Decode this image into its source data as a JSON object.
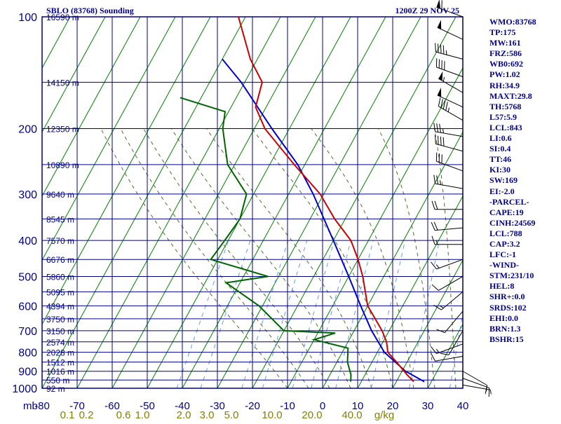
{
  "header": {
    "title": "SBLO (83768) Sounding",
    "time": "1200Z 29 NOV 25"
  },
  "colors": {
    "grid": "#00008b",
    "isotherm": "#008000",
    "temperature": "#cc0000",
    "dewpoint": "#006400",
    "parcel": "#0000cc",
    "moist": "#556b2f",
    "mixratio": "#6699ff",
    "mixlabel": "#808000",
    "text": "#00008b"
  },
  "chart_data": {
    "type": "skew-t log-p sounding",
    "pressure_unit": "mb",
    "pressure_levels": [
      100,
      200,
      300,
      400,
      500,
      600,
      700,
      800,
      900,
      1000
    ],
    "pressure_range": [
      100,
      1000
    ],
    "temperature_ticks": [
      -80,
      -70,
      -60,
      -50,
      -40,
      -30,
      -20,
      -10,
      0,
      10,
      20,
      30,
      40
    ],
    "temperature_range": [
      -80,
      40
    ],
    "height_labels": [
      {
        "p": 100,
        "label": "16590 m"
      },
      {
        "p": 150,
        "label": "14150 m"
      },
      {
        "p": 200,
        "label": "12350 m"
      },
      {
        "p": 250,
        "label": "10890 m"
      },
      {
        "p": 300,
        "label": "9640 m"
      },
      {
        "p": 350,
        "label": "8545 m"
      },
      {
        "p": 400,
        "label": "7570 m"
      },
      {
        "p": 450,
        "label": "6676 m"
      },
      {
        "p": 500,
        "label": "5860 m"
      },
      {
        "p": 550,
        "label": "5095 m"
      },
      {
        "p": 600,
        "label": "4394 m"
      },
      {
        "p": 650,
        "label": "3750 m"
      },
      {
        "p": 700,
        "label": "3150 m"
      },
      {
        "p": 750,
        "label": "2574 m"
      },
      {
        "p": 800,
        "label": "2028 m"
      },
      {
        "p": 850,
        "label": "1512 m"
      },
      {
        "p": 900,
        "label": "1016 m"
      },
      {
        "p": 950,
        "label": "550 m"
      },
      {
        "p": 1000,
        "label": "92 m"
      }
    ],
    "mixing_ratio_labels": [
      "0.1",
      "0.2",
      "0.6",
      "1.0",
      "2.0",
      "3.0",
      "5.0",
      "10.0",
      "20.0",
      "40.0",
      "g/kg"
    ],
    "mixing_ratio_values": [
      0.1,
      0.2,
      0.6,
      1.0,
      2.0,
      3.0,
      5.0,
      10.0,
      20.0,
      40.0
    ],
    "temperature_profile": [
      {
        "p": 960,
        "t": 25
      },
      {
        "p": 920,
        "t": 22
      },
      {
        "p": 850,
        "t": 17
      },
      {
        "p": 800,
        "t": 13
      },
      {
        "p": 750,
        "t": 11
      },
      {
        "p": 700,
        "t": 8
      },
      {
        "p": 600,
        "t": 0
      },
      {
        "p": 500,
        "t": -6
      },
      {
        "p": 450,
        "t": -10
      },
      {
        "p": 400,
        "t": -15
      },
      {
        "p": 350,
        "t": -23
      },
      {
        "p": 300,
        "t": -31
      },
      {
        "p": 250,
        "t": -43
      },
      {
        "p": 200,
        "t": -57
      },
      {
        "p": 175,
        "t": -63
      },
      {
        "p": 150,
        "t": -65
      },
      {
        "p": 130,
        "t": -72
      },
      {
        "p": 100,
        "t": -82
      }
    ],
    "dewpoint_profile": [
      {
        "p": 960,
        "t": 7
      },
      {
        "p": 920,
        "t": 6
      },
      {
        "p": 850,
        "t": 3
      },
      {
        "p": 780,
        "t": 1
      },
      {
        "p": 740,
        "t": -10
      },
      {
        "p": 710,
        "t": -5
      },
      {
        "p": 700,
        "t": -20
      },
      {
        "p": 600,
        "t": -31
      },
      {
        "p": 520,
        "t": -44
      },
      {
        "p": 500,
        "t": -33
      },
      {
        "p": 450,
        "t": -52
      },
      {
        "p": 400,
        "t": -51
      },
      {
        "p": 350,
        "t": -50
      },
      {
        "p": 300,
        "t": -52
      },
      {
        "p": 250,
        "t": -62
      },
      {
        "p": 200,
        "t": -69
      },
      {
        "p": 180,
        "t": -71
      },
      {
        "p": 165,
        "t": -86
      }
    ],
    "parcel_profile": [
      {
        "p": 960,
        "t": 28
      },
      {
        "p": 900,
        "t": 21
      },
      {
        "p": 800,
        "t": 12
      },
      {
        "p": 700,
        "t": 5
      },
      {
        "p": 600,
        "t": -2
      },
      {
        "p": 500,
        "t": -10
      },
      {
        "p": 400,
        "t": -20
      },
      {
        "p": 300,
        "t": -33
      },
      {
        "p": 250,
        "t": -42
      },
      {
        "p": 200,
        "t": -55
      },
      {
        "p": 150,
        "t": -71
      },
      {
        "p": 130,
        "t": -80
      }
    ]
  },
  "indices": [
    "WMO:83768",
    "TP:175",
    "MW:161",
    "FRZ:586",
    "WB0:692",
    "PW:1.02",
    "RH:34.9",
    "MAXT:29.8",
    "TH:5768",
    "L57:5.9",
    "LCL:843",
    "LI:0.6",
    "SI:0.4",
    "TT:46",
    "KI:30",
    "SW:169",
    "EI:-2.0",
    "-PARCEL-",
    "CAPE:19",
    "CINH:24569",
    "LCL:788",
    "CAP:3.2",
    "LFC:-1",
    "-WIND-",
    "STM:231/10",
    "HEL:8",
    "SHR+:0.0",
    "SRDS:102",
    "EHI:0.0",
    "BRN:1.3",
    "BSHR:15"
  ],
  "wind_barbs": [
    {
      "p": 100,
      "dir": 290,
      "spd": 60
    },
    {
      "p": 115,
      "dir": 295,
      "spd": 50
    },
    {
      "p": 130,
      "dir": 285,
      "spd": 45
    },
    {
      "p": 145,
      "dir": 290,
      "spd": 40
    },
    {
      "p": 160,
      "dir": 300,
      "spd": 55
    },
    {
      "p": 175,
      "dir": 295,
      "spd": 50
    },
    {
      "p": 190,
      "dir": 300,
      "spd": 45
    },
    {
      "p": 210,
      "dir": 280,
      "spd": 35
    },
    {
      "p": 230,
      "dir": 285,
      "spd": 40
    },
    {
      "p": 260,
      "dir": 290,
      "spd": 30
    },
    {
      "p": 290,
      "dir": 280,
      "spd": 25
    },
    {
      "p": 330,
      "dir": 270,
      "spd": 20
    },
    {
      "p": 370,
      "dir": 265,
      "spd": 20
    },
    {
      "p": 410,
      "dir": 270,
      "spd": 15
    },
    {
      "p": 450,
      "dir": 250,
      "spd": 15
    },
    {
      "p": 500,
      "dir": 240,
      "spd": 10
    },
    {
      "p": 550,
      "dir": 230,
      "spd": 15
    },
    {
      "p": 620,
      "dir": 220,
      "spd": 10
    },
    {
      "p": 700,
      "dir": 210,
      "spd": 10
    },
    {
      "p": 760,
      "dir": 250,
      "spd": 15
    },
    {
      "p": 820,
      "dir": 260,
      "spd": 10
    },
    {
      "p": 900,
      "dir": 120,
      "spd": 10
    },
    {
      "p": 940,
      "dir": 110,
      "spd": 15
    },
    {
      "p": 980,
      "dir": 100,
      "spd": 5
    }
  ]
}
